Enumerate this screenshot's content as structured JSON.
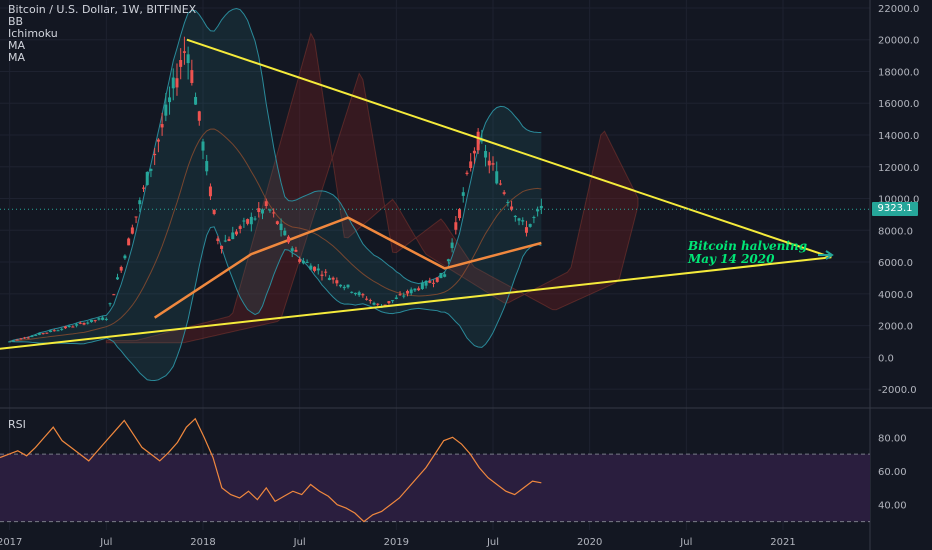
{
  "legend": {
    "symbol": "Bitcoin / U.S. Dollar, 1W, BITFINEX",
    "indicators": [
      "BB",
      "Ichimoku",
      "MA",
      "MA"
    ]
  },
  "rsi_label": "RSI",
  "last_price": "9323.1",
  "annotation": {
    "line1": "Bitcoin halvening",
    "line2": "May 14 2020"
  },
  "colors": {
    "background": "#131722",
    "up": "#26a69a",
    "down": "#ef5350",
    "trendline": "#f5eb3b",
    "ma_slow": "#f0883e",
    "rsi": "#f0883e",
    "rsi_band": "#2a1e3e",
    "annotation": "#00e676"
  },
  "chart_data": [
    {
      "type": "candlestick",
      "title": "Bitcoin / U.S. Dollar, 1W, BITFINEX",
      "x_ticks": [
        "2017",
        "Jul",
        "2018",
        "Jul",
        "2019",
        "Jul",
        "2020",
        "Jul",
        "2021"
      ],
      "y_ticks": [
        "22000.0",
        "20000.0",
        "18000.0",
        "16000.0",
        "14000.0",
        "12000.0",
        "10000.0",
        "8000.0",
        "6000.0",
        "4000.0",
        "2000.0",
        "0.0",
        "-2000.0"
      ],
      "ylim": [
        -3000,
        22500
      ],
      "last_price": 9323.1,
      "key_points": [
        {
          "date": "2017-01",
          "price": 1000
        },
        {
          "date": "2017-07",
          "price": 2500
        },
        {
          "date": "2017-12",
          "price": 19800
        },
        {
          "date": "2018-02",
          "price": 7000
        },
        {
          "date": "2018-05",
          "price": 9500
        },
        {
          "date": "2018-07",
          "price": 6200
        },
        {
          "date": "2018-12",
          "price": 3200
        },
        {
          "date": "2019-04",
          "price": 5200
        },
        {
          "date": "2019-06",
          "price": 13800
        },
        {
          "date": "2019-09",
          "price": 8000
        },
        {
          "date": "2019-10",
          "price": 9323
        }
      ],
      "trendlines": [
        {
          "from": {
            "date": "2017-12",
            "price": 20000
          },
          "to": {
            "date": "2021-04",
            "price": 6300
          }
        },
        {
          "from": {
            "date": "2016-12",
            "price": 500
          },
          "to": {
            "date": "2021-04",
            "price": 6300
          }
        }
      ],
      "moving_average": [
        {
          "date": "2017-10",
          "price": 2500
        },
        {
          "date": "2018-04",
          "price": 6500
        },
        {
          "date": "2018-10",
          "price": 8800
        },
        {
          "date": "2019-04",
          "price": 5600
        },
        {
          "date": "2019-10",
          "price": 7200
        }
      ],
      "annotation": "Bitcoin halvening May 14 2020"
    },
    {
      "type": "line",
      "title": "RSI",
      "y_ticks": [
        "80.00",
        "60.00",
        "40.00"
      ],
      "ylim": [
        25,
        95
      ],
      "bands": [
        30,
        70
      ],
      "values": [
        68,
        70,
        72,
        69,
        74,
        80,
        86,
        78,
        74,
        70,
        66,
        72,
        78,
        84,
        90,
        82,
        74,
        70,
        66,
        71,
        77,
        86,
        91,
        80,
        68,
        50,
        46,
        44,
        48,
        43,
        50,
        42,
        45,
        48,
        46,
        52,
        48,
        45,
        40,
        38,
        35,
        30,
        34,
        36,
        40,
        44,
        50,
        56,
        62,
        70,
        78,
        80,
        76,
        70,
        62,
        56,
        52,
        48,
        46,
        50,
        54,
        53
      ]
    }
  ]
}
